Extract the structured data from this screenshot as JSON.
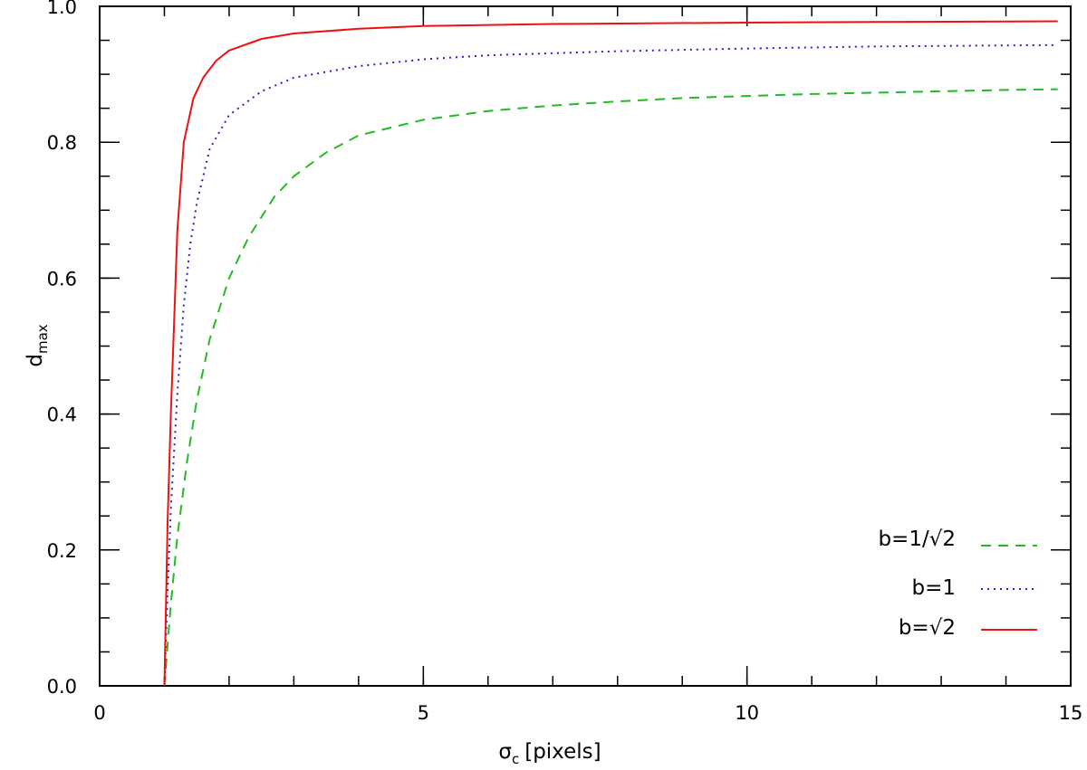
{
  "chart_data": {
    "type": "line",
    "xlabel_symbol": "σ",
    "xlabel_sub": "c",
    "xlabel_unit": "[pixels]",
    "ylabel_main": "d",
    "ylabel_sub": "max",
    "xlim": [
      0,
      15
    ],
    "ylim": [
      0.0,
      1.0
    ],
    "x_ticks": [
      0,
      5,
      10,
      15
    ],
    "x_tick_labels": [
      "0",
      "5",
      "10",
      "15"
    ],
    "y_ticks": [
      0.0,
      0.2,
      0.4,
      0.6,
      0.8,
      1.0
    ],
    "y_tick_labels": [
      "0.0",
      "0.2",
      "0.4",
      "0.6",
      "0.8",
      "1.0"
    ],
    "x_minor_step": 1,
    "y_minor_step": 0.05,
    "legend_position": "bottom-right",
    "series": [
      {
        "name": "b=1/√2",
        "color": "#22bb22",
        "style": "dashed",
        "points": [
          [
            1.0,
            0.0
          ],
          [
            1.05,
            0.06
          ],
          [
            1.1,
            0.12
          ],
          [
            1.2,
            0.22
          ],
          [
            1.35,
            0.33
          ],
          [
            1.5,
            0.42
          ],
          [
            1.7,
            0.51
          ],
          [
            2.0,
            0.6
          ],
          [
            2.3,
            0.66
          ],
          [
            2.7,
            0.72
          ],
          [
            3.0,
            0.75
          ],
          [
            3.5,
            0.785
          ],
          [
            4.0,
            0.81
          ],
          [
            5.0,
            0.833
          ],
          [
            6.0,
            0.846
          ],
          [
            7.0,
            0.854
          ],
          [
            8.0,
            0.86
          ],
          [
            9.0,
            0.865
          ],
          [
            10.0,
            0.868
          ],
          [
            11.0,
            0.871
          ],
          [
            12.0,
            0.873
          ],
          [
            13.0,
            0.875
          ],
          [
            14.0,
            0.877
          ],
          [
            14.8,
            0.878
          ]
        ]
      },
      {
        "name": "b=1",
        "color": "#2222cc",
        "style": "dotted",
        "points": [
          [
            1.0,
            0.0
          ],
          [
            1.05,
            0.14
          ],
          [
            1.1,
            0.26
          ],
          [
            1.2,
            0.43
          ],
          [
            1.3,
            0.56
          ],
          [
            1.4,
            0.65
          ],
          [
            1.5,
            0.71
          ],
          [
            1.7,
            0.79
          ],
          [
            2.0,
            0.84
          ],
          [
            2.5,
            0.875
          ],
          [
            3.0,
            0.895
          ],
          [
            4.0,
            0.912
          ],
          [
            5.0,
            0.922
          ],
          [
            6.0,
            0.928
          ],
          [
            8.0,
            0.934
          ],
          [
            10.0,
            0.938
          ],
          [
            12.0,
            0.941
          ],
          [
            14.8,
            0.943
          ]
        ]
      },
      {
        "name": "b=√2",
        "color": "#ee1111",
        "style": "solid",
        "points": [
          [
            1.0,
            0.0
          ],
          [
            1.05,
            0.24
          ],
          [
            1.1,
            0.4
          ],
          [
            1.2,
            0.67
          ],
          [
            1.3,
            0.8
          ],
          [
            1.45,
            0.865
          ],
          [
            1.6,
            0.895
          ],
          [
            1.8,
            0.92
          ],
          [
            2.0,
            0.935
          ],
          [
            2.5,
            0.952
          ],
          [
            3.0,
            0.96
          ],
          [
            4.0,
            0.967
          ],
          [
            5.0,
            0.971
          ],
          [
            7.0,
            0.974
          ],
          [
            10.0,
            0.976
          ],
          [
            12.0,
            0.977
          ],
          [
            14.8,
            0.978
          ]
        ]
      }
    ]
  }
}
